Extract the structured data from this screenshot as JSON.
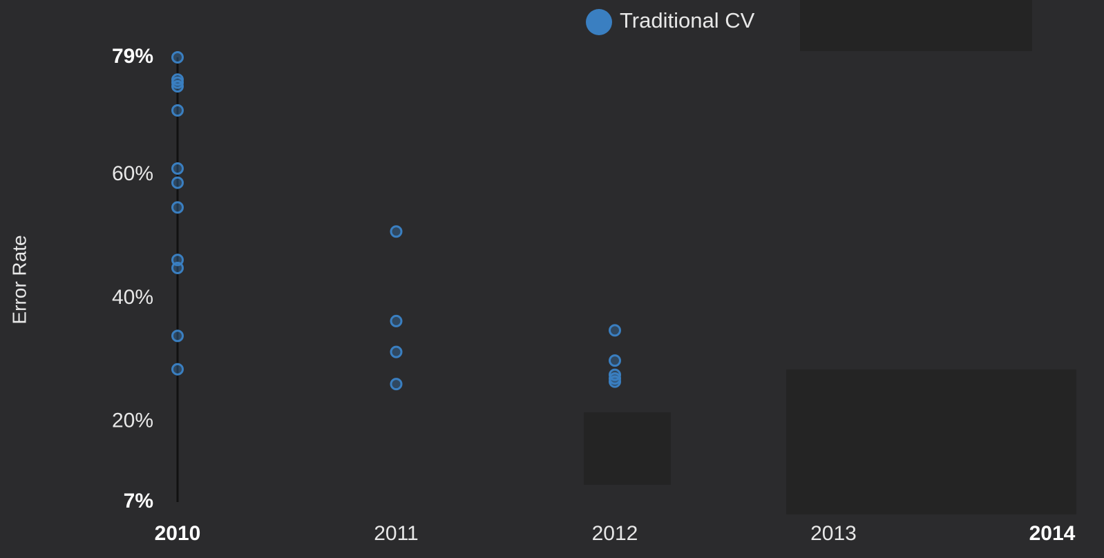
{
  "chart_data": {
    "type": "scatter",
    "y_label": "Error Rate",
    "xlim": [
      2010,
      2014
    ],
    "xticks": [
      2010,
      2011,
      2012,
      2013,
      2014
    ],
    "ylim": [
      7,
      79
    ],
    "yticks": [
      {
        "value": 7,
        "label": "7%"
      },
      {
        "value": 20,
        "label": "20%"
      },
      {
        "value": 40,
        "label": "40%"
      },
      {
        "value": 60,
        "label": "60%"
      },
      {
        "value": 79,
        "label": "79%"
      }
    ],
    "legend": "top",
    "series": [
      {
        "name": "Traditional CV",
        "color": "#3a7fc1",
        "x": [
          2010,
          2010,
          2010,
          2010,
          2010,
          2010,
          2010,
          2010,
          2010,
          2010,
          2010,
          2010,
          2011,
          2011,
          2011,
          2011,
          2012,
          2012,
          2012,
          2012,
          2012
        ],
        "values": [
          79.0,
          75.4,
          74.9,
          74.3,
          70.4,
          61.0,
          58.7,
          54.7,
          46.2,
          44.9,
          33.9,
          28.5,
          50.8,
          36.3,
          31.3,
          26.1,
          34.8,
          29.9,
          27.6,
          27.0,
          26.5
        ]
      }
    ]
  }
}
